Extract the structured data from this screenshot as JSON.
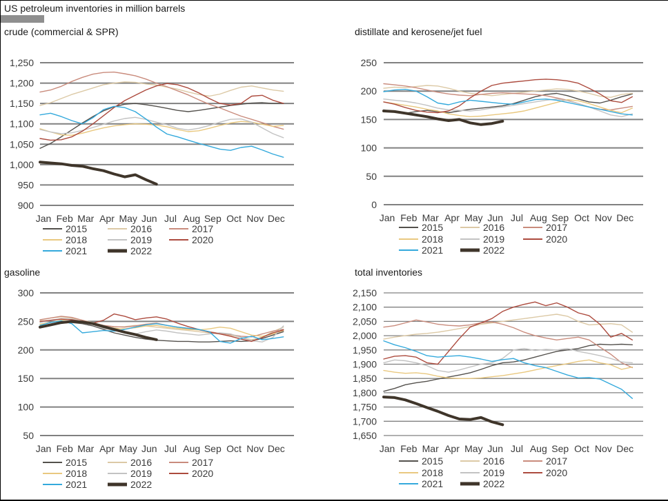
{
  "page": {
    "title": "US petroleum inventories in million barrels"
  },
  "colors": {
    "2015": "#53504c",
    "2016": "#dcc9a5",
    "2017": "#c98b7c",
    "2018": "#e9c87f",
    "2019": "#c2c2c2",
    "2020": "#ac4a3d",
    "2021": "#33a9dc",
    "2022": "#3f352a",
    "grid": "#808080",
    "text": "#3a3a3a",
    "accent_bar": "#8f8f8f"
  },
  "months": [
    "Jan",
    "Feb",
    "Mar",
    "Apr",
    "May",
    "Jun",
    "Jul",
    "Aug",
    "Sep",
    "Oct",
    "Nov",
    "Dec"
  ],
  "chart_data": [
    {
      "type": "line",
      "title": "crude (commercial & SPR)",
      "xlabel": "",
      "ylabel": "",
      "ylim": [
        900,
        1250
      ],
      "ystep": 50,
      "grid": true,
      "legend_position": "bottom",
      "x_unit": "months",
      "series": [
        {
          "name": "2015",
          "x_start": 0,
          "x_step": 0.5,
          "values": [
            1040,
            1052,
            1068,
            1085,
            1102,
            1118,
            1132,
            1142,
            1148,
            1150,
            1147,
            1143,
            1138,
            1133,
            1130,
            1133,
            1137,
            1141,
            1145,
            1148,
            1151,
            1152,
            1150,
            1150
          ]
        },
        {
          "name": "2016",
          "x_start": 0,
          "x_step": 0.5,
          "values": [
            1145,
            1152,
            1162,
            1172,
            1180,
            1188,
            1196,
            1200,
            1203,
            1202,
            1198,
            1195,
            1190,
            1185,
            1178,
            1172,
            1168,
            1173,
            1182,
            1190,
            1193,
            1188,
            1183,
            1180
          ]
        },
        {
          "name": "2017",
          "x_start": 0,
          "x_step": 0.5,
          "values": [
            1178,
            1183,
            1192,
            1204,
            1214,
            1222,
            1226,
            1227,
            1223,
            1218,
            1210,
            1200,
            1191,
            1181,
            1171,
            1159,
            1148,
            1139,
            1129,
            1119,
            1111,
            1103,
            1094,
            1087
          ]
        },
        {
          "name": "2018",
          "x_start": 0,
          "x_step": 0.5,
          "values": [
            1088,
            1080,
            1073,
            1072,
            1077,
            1084,
            1090,
            1095,
            1098,
            1100,
            1099,
            1097,
            1093,
            1086,
            1081,
            1083,
            1089,
            1096,
            1102,
            1106,
            1104,
            1099,
            1094,
            1096
          ]
        },
        {
          "name": "2019",
          "x_start": 0,
          "x_step": 0.5,
          "values": [
            1086,
            1080,
            1076,
            1078,
            1084,
            1091,
            1099,
            1107,
            1113,
            1116,
            1111,
            1104,
            1098,
            1089,
            1085,
            1089,
            1096,
            1104,
            1111,
            1112,
            1104,
            1090,
            1076,
            1066
          ]
        },
        {
          "name": "2020",
          "x_start": 0,
          "x_step": 0.5,
          "values": [
            1064,
            1060,
            1061,
            1068,
            1082,
            1100,
            1120,
            1140,
            1157,
            1170,
            1183,
            1193,
            1199,
            1196,
            1188,
            1176,
            1162,
            1150,
            1146,
            1150,
            1168,
            1170,
            1158,
            1150
          ]
        },
        {
          "name": "2021",
          "x_start": 0,
          "x_step": 0.5,
          "values": [
            1122,
            1126,
            1118,
            1108,
            1100,
            1115,
            1135,
            1143,
            1140,
            1130,
            1112,
            1092,
            1075,
            1068,
            1060,
            1052,
            1045,
            1038,
            1035,
            1042,
            1045,
            1036,
            1026,
            1018
          ]
        },
        {
          "name": "2022",
          "x_start": 0,
          "x_step": 0.5,
          "values": [
            1006,
            1004,
            1002,
            998,
            996,
            990,
            985,
            977,
            970,
            975,
            963,
            952
          ]
        }
      ]
    },
    {
      "type": "line",
      "title": "distillate and kerosene/jet fuel",
      "xlabel": "",
      "ylabel": "",
      "ylim": [
        0,
        250
      ],
      "ystep": 50,
      "grid": true,
      "legend_position": "bottom",
      "x_unit": "months",
      "series": [
        {
          "name": "2015",
          "x_start": 0,
          "x_step": 0.5,
          "values": [
            167,
            163,
            161,
            164,
            166,
            164,
            162,
            165,
            168,
            170,
            172,
            174,
            178,
            184,
            190,
            194,
            196,
            192,
            186,
            181,
            179,
            184,
            190,
            195
          ]
        },
        {
          "name": "2016",
          "x_start": 0,
          "x_step": 0.5,
          "values": [
            205,
            207,
            206,
            208,
            210,
            209,
            205,
            200,
            196,
            194,
            192,
            194,
            196,
            198,
            200,
            202,
            204,
            203,
            200,
            196,
            191,
            189,
            194,
            196
          ]
        },
        {
          "name": "2017",
          "x_start": 0,
          "x_step": 0.5,
          "values": [
            213,
            211,
            209,
            206,
            202,
            198,
            195,
            193,
            192,
            194,
            196,
            197,
            196,
            195,
            194,
            192,
            188,
            184,
            178,
            172,
            168,
            167,
            170,
            173
          ]
        },
        {
          "name": "2018",
          "x_start": 0,
          "x_step": 0.5,
          "values": [
            181,
            178,
            175,
            172,
            168,
            165,
            160,
            157,
            155,
            156,
            158,
            160,
            162,
            165,
            170,
            175,
            180,
            185,
            183,
            178,
            172,
            166,
            162,
            170
          ]
        },
        {
          "name": "2019",
          "x_start": 0,
          "x_step": 0.5,
          "values": [
            186,
            184,
            182,
            179,
            175,
            170,
            167,
            166,
            165,
            167,
            170,
            172,
            175,
            178,
            181,
            184,
            186,
            183,
            178,
            172,
            165,
            158,
            155,
            160
          ]
        },
        {
          "name": "2020",
          "x_start": 0,
          "x_step": 0.5,
          "values": [
            181,
            177,
            171,
            166,
            163,
            162,
            165,
            174,
            188,
            200,
            210,
            214,
            216,
            218,
            220,
            221,
            220,
            218,
            214,
            205,
            195,
            183,
            180,
            190
          ]
        },
        {
          "name": "2021",
          "x_start": 0,
          "x_step": 0.5,
          "values": [
            199,
            202,
            203,
            200,
            190,
            179,
            176,
            181,
            184,
            182,
            180,
            178,
            177,
            181,
            185,
            186,
            184,
            180,
            176,
            172,
            168,
            164,
            160,
            158
          ]
        },
        {
          "name": "2022",
          "x_start": 0,
          "x_step": 0.5,
          "values": [
            165,
            164,
            161,
            158,
            155,
            151,
            148,
            150,
            144,
            141,
            143,
            147
          ]
        }
      ]
    },
    {
      "type": "line",
      "title": "gasoline",
      "xlabel": "",
      "ylabel": "",
      "ylim": [
        50,
        300
      ],
      "ystep": 50,
      "grid": true,
      "legend_position": "bottom",
      "x_unit": "months",
      "series": [
        {
          "name": "2015",
          "x_start": 0,
          "x_step": 0.5,
          "values": [
            240,
            244,
            247,
            248,
            246,
            242,
            236,
            230,
            226,
            222,
            219,
            217,
            216,
            215,
            215,
            214,
            214,
            215,
            216,
            215,
            216,
            220,
            226,
            232
          ]
        },
        {
          "name": "2016",
          "x_start": 0,
          "x_step": 0.5,
          "values": [
            252,
            256,
            258,
            256,
            252,
            248,
            243,
            240,
            241,
            243,
            242,
            240,
            238,
            236,
            234,
            232,
            230,
            228,
            226,
            222,
            218,
            222,
            232,
            240
          ]
        },
        {
          "name": "2017",
          "x_start": 0,
          "x_step": 0.5,
          "values": [
            253,
            256,
            259,
            257,
            252,
            247,
            243,
            241,
            240,
            242,
            245,
            247,
            243,
            240,
            237,
            235,
            232,
            229,
            227,
            224,
            223,
            228,
            233,
            236
          ]
        },
        {
          "name": "2018",
          "x_start": 0,
          "x_step": 0.5,
          "values": [
            245,
            248,
            252,
            254,
            250,
            246,
            240,
            238,
            237,
            239,
            242,
            243,
            240,
            238,
            236,
            235,
            237,
            240,
            238,
            232,
            226,
            224,
            228,
            234
          ]
        },
        {
          "name": "2019",
          "x_start": 0,
          "x_step": 0.5,
          "values": [
            248,
            252,
            255,
            254,
            250,
            245,
            238,
            234,
            230,
            228,
            232,
            235,
            233,
            230,
            228,
            226,
            228,
            230,
            228,
            222,
            216,
            214,
            222,
            242
          ]
        },
        {
          "name": "2020",
          "x_start": 0,
          "x_step": 0.5,
          "values": [
            250,
            252,
            254,
            253,
            250,
            247,
            252,
            263,
            259,
            253,
            256,
            258,
            254,
            247,
            241,
            236,
            231,
            228,
            224,
            219,
            215,
            222,
            230,
            235
          ]
        },
        {
          "name": "2021",
          "x_start": 0,
          "x_step": 0.5,
          "values": [
            243,
            248,
            251,
            246,
            230,
            232,
            234,
            233,
            236,
            240,
            244,
            246,
            243,
            240,
            238,
            236,
            232,
            215,
            212,
            220,
            224,
            218,
            220,
            223
          ]
        },
        {
          "name": "2022",
          "x_start": 0,
          "x_step": 0.5,
          "values": [
            240,
            244,
            248,
            250,
            249,
            246,
            241,
            236,
            231,
            227,
            222,
            218
          ]
        }
      ]
    },
    {
      "type": "line",
      "title": "total inventories",
      "xlabel": "",
      "ylabel": "",
      "ylim": [
        1650,
        2150
      ],
      "ystep": 50,
      "grid": true,
      "legend_position": "bottom",
      "x_unit": "months",
      "series": [
        {
          "name": "2015",
          "x_start": 0,
          "x_step": 0.5,
          "values": [
            1805,
            1815,
            1828,
            1835,
            1840,
            1848,
            1855,
            1862,
            1870,
            1882,
            1895,
            1905,
            1908,
            1915,
            1925,
            1935,
            1945,
            1950,
            1955,
            1965,
            1970,
            1968,
            1970,
            1968
          ]
        },
        {
          "name": "2016",
          "x_start": 0,
          "x_step": 0.5,
          "values": [
            1988,
            1995,
            2000,
            2005,
            2008,
            2012,
            2018,
            2025,
            2032,
            2040,
            2045,
            2050,
            2055,
            2060,
            2065,
            2070,
            2075,
            2068,
            2050,
            2038,
            2040,
            2042,
            2038,
            2012
          ]
        },
        {
          "name": "2017",
          "x_start": 0,
          "x_step": 0.5,
          "values": [
            2030,
            2035,
            2045,
            2055,
            2048,
            2040,
            2036,
            2034,
            2038,
            2045,
            2048,
            2040,
            2028,
            2012,
            2000,
            1992,
            1985,
            1990,
            1995,
            1985,
            1960,
            1935,
            1905,
            1888
          ]
        },
        {
          "name": "2018",
          "x_start": 0,
          "x_step": 0.5,
          "values": [
            1878,
            1872,
            1868,
            1870,
            1866,
            1858,
            1852,
            1850,
            1850,
            1852,
            1856,
            1860,
            1866,
            1872,
            1880,
            1888,
            1895,
            1902,
            1910,
            1915,
            1905,
            1898,
            1882,
            1890
          ]
        },
        {
          "name": "2019",
          "x_start": 0,
          "x_step": 0.5,
          "values": [
            1905,
            1915,
            1912,
            1905,
            1895,
            1878,
            1872,
            1880,
            1890,
            1900,
            1905,
            1920,
            1950,
            1955,
            1948,
            1952,
            1950,
            1955,
            1945,
            1938,
            1930,
            1920,
            1908,
            1905
          ]
        },
        {
          "name": "2020",
          "x_start": 0,
          "x_step": 0.5,
          "values": [
            1918,
            1928,
            1930,
            1925,
            1905,
            1900,
            1945,
            1990,
            2030,
            2045,
            2060,
            2085,
            2100,
            2110,
            2118,
            2105,
            2115,
            2100,
            2080,
            2070,
            2040,
            1995,
            2008,
            1985
          ]
        },
        {
          "name": "2021",
          "x_start": 0,
          "x_step": 0.5,
          "values": [
            1982,
            1968,
            1958,
            1945,
            1930,
            1925,
            1928,
            1930,
            1925,
            1918,
            1910,
            1916,
            1920,
            1905,
            1895,
            1888,
            1875,
            1862,
            1852,
            1853,
            1848,
            1830,
            1812,
            1780
          ]
        },
        {
          "name": "2022",
          "x_start": 0,
          "x_step": 0.5,
          "values": [
            1785,
            1783,
            1775,
            1762,
            1748,
            1735,
            1720,
            1708,
            1706,
            1713,
            1698,
            1688
          ]
        }
      ]
    }
  ]
}
